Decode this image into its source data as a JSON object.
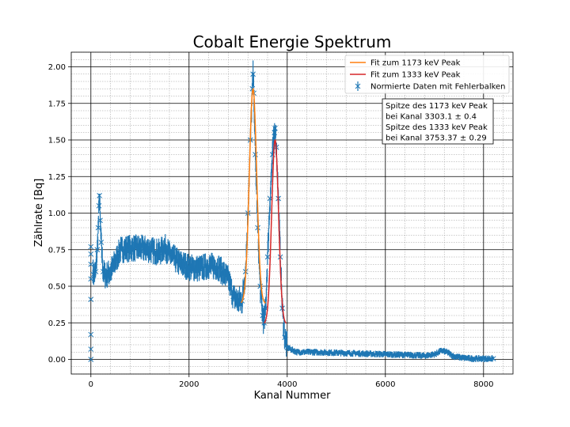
{
  "chart_data": {
    "type": "scatter",
    "title": "Cobalt Energie Spektrum",
    "xlabel": "Kanal Nummer",
    "ylabel": "Zählrate [Bq]",
    "xlim": [
      -400,
      8600
    ],
    "ylim": [
      -0.1,
      2.1
    ],
    "x_ticks": [
      0,
      2000,
      4000,
      6000,
      8000
    ],
    "x_tick_labels": [
      "0",
      "2000",
      "4000",
      "6000",
      "8000"
    ],
    "y_ticks": [
      0.0,
      0.25,
      0.5,
      0.75,
      1.0,
      1.25,
      1.5,
      1.75,
      2.0
    ],
    "y_tick_labels": [
      "0.00",
      "0.25",
      "0.50",
      "0.75",
      "1.00",
      "1.25",
      "1.50",
      "1.75",
      "2.00"
    ],
    "grid": {
      "major": true,
      "minor": true
    },
    "legend_position": "top-right",
    "colors": {
      "data": "#1f77b4",
      "fit1173": "#ff7f0e",
      "fit1333": "#d62728"
    },
    "series": [
      {
        "name": "Normierte Daten mit Fehlerbalken",
        "kind": "errorbar-scatter",
        "marker": "x",
        "points": [
          [
            0,
            0.0
          ],
          [
            0,
            0.07
          ],
          [
            0,
            0.17
          ],
          [
            0,
            0.41
          ],
          [
            0,
            0.55
          ],
          [
            0,
            0.65
          ],
          [
            0,
            0.72
          ],
          [
            0,
            0.77
          ],
          [
            50,
            0.58
          ],
          [
            100,
            0.6
          ],
          [
            130,
            0.75
          ],
          [
            150,
            0.9
          ],
          [
            165,
            1.05
          ],
          [
            175,
            1.12
          ],
          [
            190,
            0.95
          ],
          [
            210,
            0.8
          ],
          [
            250,
            0.6
          ],
          [
            300,
            0.57
          ],
          [
            400,
            0.6
          ],
          [
            500,
            0.67
          ],
          [
            600,
            0.75
          ],
          [
            800,
            0.76
          ],
          [
            1000,
            0.76
          ],
          [
            1200,
            0.75
          ],
          [
            1400,
            0.73
          ],
          [
            1500,
            0.77
          ],
          [
            1600,
            0.72
          ],
          [
            1800,
            0.66
          ],
          [
            2000,
            0.63
          ],
          [
            2200,
            0.62
          ],
          [
            2400,
            0.64
          ],
          [
            2600,
            0.63
          ],
          [
            2800,
            0.55
          ],
          [
            2900,
            0.43
          ],
          [
            3000,
            0.4
          ],
          [
            3080,
            0.4
          ],
          [
            3150,
            0.6
          ],
          [
            3200,
            1.0
          ],
          [
            3250,
            1.5
          ],
          [
            3290,
            1.85
          ],
          [
            3303,
            1.95
          ],
          [
            3320,
            1.82
          ],
          [
            3350,
            1.4
          ],
          [
            3400,
            0.9
          ],
          [
            3450,
            0.5
          ],
          [
            3500,
            0.3
          ],
          [
            3530,
            0.25
          ],
          [
            3560,
            0.35
          ],
          [
            3600,
            0.7
          ],
          [
            3650,
            1.1
          ],
          [
            3700,
            1.4
          ],
          [
            3740,
            1.55
          ],
          [
            3753,
            1.58
          ],
          [
            3780,
            1.45
          ],
          [
            3820,
            1.1
          ],
          [
            3860,
            0.7
          ],
          [
            3900,
            0.35
          ],
          [
            3950,
            0.15
          ],
          [
            4000,
            0.08
          ],
          [
            4200,
            0.05
          ],
          [
            4500,
            0.05
          ],
          [
            5000,
            0.045
          ],
          [
            5500,
            0.04
          ],
          [
            6000,
            0.035
          ],
          [
            6500,
            0.03
          ],
          [
            6800,
            0.025
          ],
          [
            7000,
            0.035
          ],
          [
            7150,
            0.06
          ],
          [
            7250,
            0.05
          ],
          [
            7400,
            0.02
          ],
          [
            7600,
            0.01
          ],
          [
            7800,
            0.005
          ],
          [
            8000,
            0.005
          ],
          [
            8200,
            0.005
          ]
        ]
      },
      {
        "name": "Fit zum 1173 keV Peak",
        "kind": "gaussian",
        "center": 3303.1,
        "sigma": 75,
        "amplitude": 1.47,
        "offset": 0.38,
        "range": [
          3060,
          3560
        ]
      },
      {
        "name": "Fit zum 1333 keV Peak",
        "kind": "gaussian",
        "center": 3753.37,
        "sigma": 70,
        "amplitude": 1.26,
        "offset": 0.24,
        "range": [
          3530,
          3980
        ]
      }
    ],
    "annotation": {
      "lines": [
        "Spitze des 1173 keV Peak",
        "bei Kanal 3303.1 ± 0.4",
        "Spitze des 1333 keV Peak",
        "bei Kanal 3753.37 ± 0.29"
      ]
    }
  }
}
